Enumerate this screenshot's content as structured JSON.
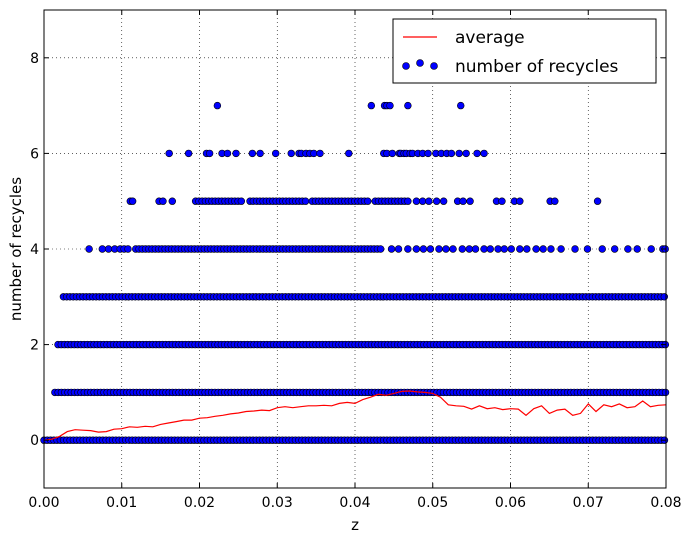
{
  "chart_data": {
    "type": "scatter",
    "xlabel": "z",
    "ylabel": "number of recycles",
    "xlim": [
      0.0,
      0.08
    ],
    "ylim": [
      -1,
      9
    ],
    "xticks": [
      "0.00",
      "0.01",
      "0.02",
      "0.03",
      "0.04",
      "0.05",
      "0.06",
      "0.07",
      "0.08"
    ],
    "yticks": [
      "0",
      "2",
      "4",
      "6",
      "8"
    ],
    "xtick_values": [
      0.0,
      0.01,
      0.02,
      0.03,
      0.04,
      0.05,
      0.06,
      0.07,
      0.08
    ],
    "ytick_values": [
      0,
      2,
      4,
      6,
      8
    ],
    "grid": true,
    "legend_position": "top-right",
    "series": [
      {
        "name": "average",
        "kind": "line",
        "color": "#ff0000",
        "x": [
          0.0,
          0.001,
          0.002,
          0.003,
          0.004,
          0.005,
          0.006,
          0.007,
          0.008,
          0.009,
          0.01,
          0.011,
          0.012,
          0.013,
          0.014,
          0.015,
          0.016,
          0.017,
          0.018,
          0.019,
          0.02,
          0.021,
          0.022,
          0.023,
          0.024,
          0.025,
          0.026,
          0.027,
          0.028,
          0.029,
          0.03,
          0.031,
          0.032,
          0.033,
          0.034,
          0.035,
          0.036,
          0.037,
          0.038,
          0.039,
          0.04,
          0.041,
          0.042,
          0.043,
          0.044,
          0.045,
          0.046,
          0.047,
          0.048,
          0.049,
          0.05,
          0.051,
          0.052,
          0.053,
          0.054,
          0.055,
          0.056,
          0.057,
          0.058,
          0.059,
          0.06,
          0.061,
          0.062,
          0.063,
          0.064,
          0.065,
          0.066,
          0.067,
          0.068,
          0.069,
          0.07,
          0.071,
          0.072,
          0.073,
          0.074,
          0.075,
          0.076,
          0.077,
          0.078,
          0.079,
          0.08
        ],
        "y": [
          0.0,
          0.02,
          0.08,
          0.18,
          0.22,
          0.21,
          0.2,
          0.17,
          0.18,
          0.23,
          0.24,
          0.28,
          0.27,
          0.29,
          0.28,
          0.33,
          0.36,
          0.39,
          0.42,
          0.42,
          0.46,
          0.47,
          0.5,
          0.52,
          0.55,
          0.57,
          0.6,
          0.61,
          0.63,
          0.62,
          0.68,
          0.7,
          0.68,
          0.7,
          0.72,
          0.72,
          0.73,
          0.72,
          0.77,
          0.79,
          0.77,
          0.85,
          0.9,
          0.96,
          0.94,
          0.98,
          1.02,
          1.03,
          1.01,
          1.0,
          0.98,
          0.9,
          0.74,
          0.72,
          0.71,
          0.65,
          0.72,
          0.66,
          0.68,
          0.64,
          0.66,
          0.65,
          0.52,
          0.66,
          0.72,
          0.56,
          0.63,
          0.65,
          0.52,
          0.56,
          0.76,
          0.6,
          0.74,
          0.7,
          0.76,
          0.68,
          0.7,
          0.82,
          0.7,
          0.73,
          0.74
        ]
      },
      {
        "name": "number of recycles",
        "kind": "scatter",
        "color": "#0000ff",
        "edgecolor": "#000000",
        "levels": [
          {
            "y": 0,
            "x_ranges": [
              [
                0.0,
                0.08
              ]
            ],
            "x_points": []
          },
          {
            "y": 1,
            "x_ranges": [
              [
                0.0014,
                0.08
              ]
            ],
            "x_points": []
          },
          {
            "y": 2,
            "x_ranges": [
              [
                0.0018,
                0.08
              ]
            ],
            "x_points": []
          },
          {
            "y": 3,
            "x_ranges": [
              [
                0.0025,
                0.08
              ]
            ],
            "x_points": []
          },
          {
            "y": 4,
            "x_ranges": [
              [
                0.0118,
                0.0435
              ]
            ],
            "x_points": [
              0.0058,
              0.0075,
              0.0083,
              0.0091,
              0.0098,
              0.0103,
              0.0108,
              0.0447,
              0.0456,
              0.0468,
              0.0479,
              0.0488,
              0.0497,
              0.0508,
              0.0517,
              0.0526,
              0.0538,
              0.0547,
              0.0555,
              0.0566,
              0.0574,
              0.0584,
              0.0592,
              0.0601,
              0.0612,
              0.0621,
              0.0633,
              0.0642,
              0.0652,
              0.0665,
              0.0683,
              0.0699,
              0.0718,
              0.0734,
              0.0751,
              0.0763,
              0.0781,
              0.0796,
              0.0799
            ]
          },
          {
            "y": 5,
            "x_ranges": [
              [
                0.0195,
                0.0256
              ],
              [
                0.0265,
                0.0338
              ],
              [
                0.0345,
                0.0418
              ],
              [
                0.0426,
                0.0472
              ]
            ],
            "x_points": [
              0.0111,
              0.0114,
              0.0148,
              0.0153,
              0.0165,
              0.0479,
              0.0487,
              0.0495,
              0.0505,
              0.0514,
              0.0532,
              0.0539,
              0.0548,
              0.0582,
              0.0589,
              0.0605,
              0.0612,
              0.0651,
              0.0657,
              0.0712
            ]
          },
          {
            "y": 6,
            "x_ranges": [],
            "x_points": [
              0.0161,
              0.0186,
              0.0209,
              0.0213,
              0.0229,
              0.0236,
              0.0247,
              0.0268,
              0.0278,
              0.0298,
              0.0318,
              0.0328,
              0.0331,
              0.0337,
              0.0342,
              0.0347,
              0.0355,
              0.0392,
              0.0437,
              0.0441,
              0.0448,
              0.0457,
              0.0459,
              0.0463,
              0.0466,
              0.0471,
              0.0474,
              0.0481,
              0.0487,
              0.0494,
              0.0504,
              0.0511,
              0.0518,
              0.0524,
              0.0534,
              0.0543,
              0.0557,
              0.0566
            ]
          },
          {
            "y": 7,
            "x_ranges": [],
            "x_points": [
              0.0223,
              0.0421,
              0.0438,
              0.0441,
              0.0445,
              0.0468,
              0.0536
            ]
          }
        ]
      }
    ]
  }
}
